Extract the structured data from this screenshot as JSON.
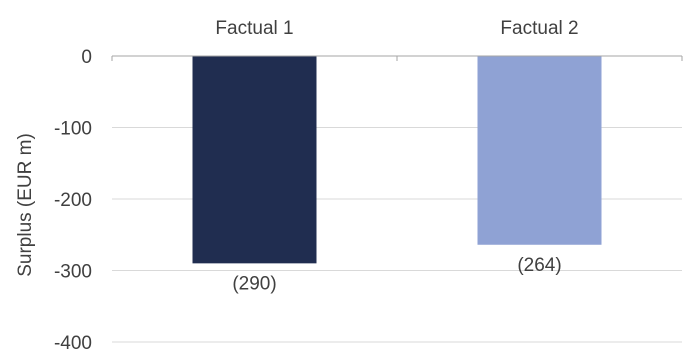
{
  "chart_data": {
    "type": "bar",
    "categories": [
      "Factual 1",
      "Factual 2"
    ],
    "values": [
      -290,
      -264
    ],
    "data_labels": [
      "(290)",
      "(264)"
    ],
    "bar_colors": [
      "#202d50",
      "#8fa2d4"
    ],
    "title": "",
    "xlabel": "",
    "ylabel": "Surplus (EUR m)",
    "ylim": [
      -400,
      0
    ],
    "yticks": [
      0,
      -100,
      -200,
      -300,
      -400
    ],
    "ytick_labels": [
      "0",
      "-100",
      "-200",
      "-300",
      "-400"
    ],
    "category_axis_position": "top",
    "grid": true,
    "legend": "none",
    "gridline_color": "#d9d9d9",
    "text_color": "#404040"
  }
}
